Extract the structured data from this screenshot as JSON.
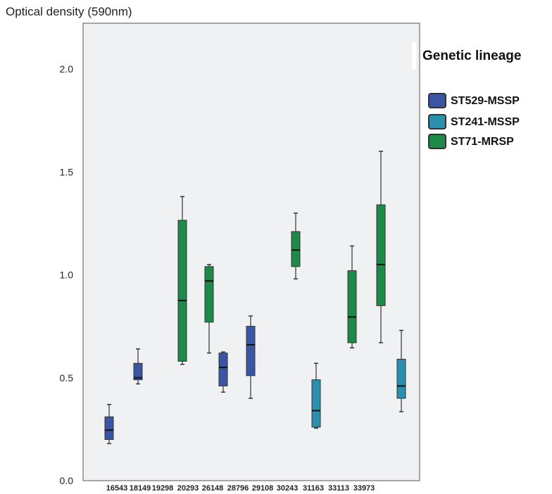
{
  "chart_data": {
    "type": "boxplot",
    "ylabel": "Optical density (590nm)",
    "ylim": [
      0,
      2.2
    ],
    "yticks": [
      "0.0",
      "0.5",
      "1.0",
      "1.5",
      "2.0"
    ],
    "ytick_values": [
      0,
      0.5,
      1.0,
      1.5,
      2.0
    ],
    "grid": false,
    "legend": {
      "title": "Genetic lineage",
      "placement": "right",
      "entries": [
        {
          "name": "ST529-MSSP",
          "color": "#3a55a4"
        },
        {
          "name": "ST241-MSSP",
          "color": "#2b8fae"
        },
        {
          "name": "ST71-MRSP",
          "color": "#1e8a49"
        }
      ]
    },
    "categories": [
      "16543",
      "18149",
      "19298",
      "20293",
      "26148",
      "28796",
      "29108",
      "30243",
      "31163",
      "33113",
      "33973"
    ],
    "boxes": [
      {
        "category": "16543",
        "lineage": "ST529-MSSP",
        "min": 0.18,
        "q1": 0.2,
        "median": 0.245,
        "q3": 0.31,
        "max": 0.37
      },
      {
        "category": "18149",
        "lineage": "ST529-MSSP",
        "min": 0.47,
        "q1": 0.49,
        "median": 0.5,
        "q3": 0.57,
        "max": 0.64
      },
      {
        "category": "19298",
        "lineage": "ST71-MRSP",
        "min": 0.565,
        "q1": 0.58,
        "median": 0.875,
        "q3": 1.265,
        "max": 1.38
      },
      {
        "category": "20293",
        "lineage": "ST71-MRSP",
        "min": 0.62,
        "q1": 0.77,
        "median": 0.97,
        "q3": 1.04,
        "max": 1.05
      },
      {
        "category": "26148",
        "lineage": "ST529-MSSP",
        "min": 0.43,
        "q1": 0.46,
        "median": 0.55,
        "q3": 0.62,
        "max": 0.625
      },
      {
        "category": "28796",
        "lineage": "ST529-MSSP",
        "min": 0.4,
        "q1": 0.51,
        "median": 0.66,
        "q3": 0.75,
        "max": 0.8
      },
      {
        "category": "29108",
        "lineage": "ST71-MRSP",
        "min": 0.98,
        "q1": 1.04,
        "median": 1.12,
        "q3": 1.21,
        "max": 1.3
      },
      {
        "category": "30243",
        "lineage": "ST241-MSSP",
        "min": 0.255,
        "q1": 0.26,
        "median": 0.34,
        "q3": 0.49,
        "max": 0.57
      },
      {
        "category": "31163",
        "lineage": "ST71-MRSP",
        "min": 0.645,
        "q1": 0.67,
        "median": 0.795,
        "q3": 1.02,
        "max": 1.14
      },
      {
        "category": "33113",
        "lineage": "ST71-MRSP",
        "min": 0.67,
        "q1": 0.85,
        "median": 1.05,
        "q3": 1.34,
        "max": 1.6
      },
      {
        "category": "33973",
        "lineage": "ST241-MSSP",
        "min": 0.335,
        "q1": 0.4,
        "median": 0.46,
        "q3": 0.59,
        "max": 0.73
      }
    ]
  }
}
